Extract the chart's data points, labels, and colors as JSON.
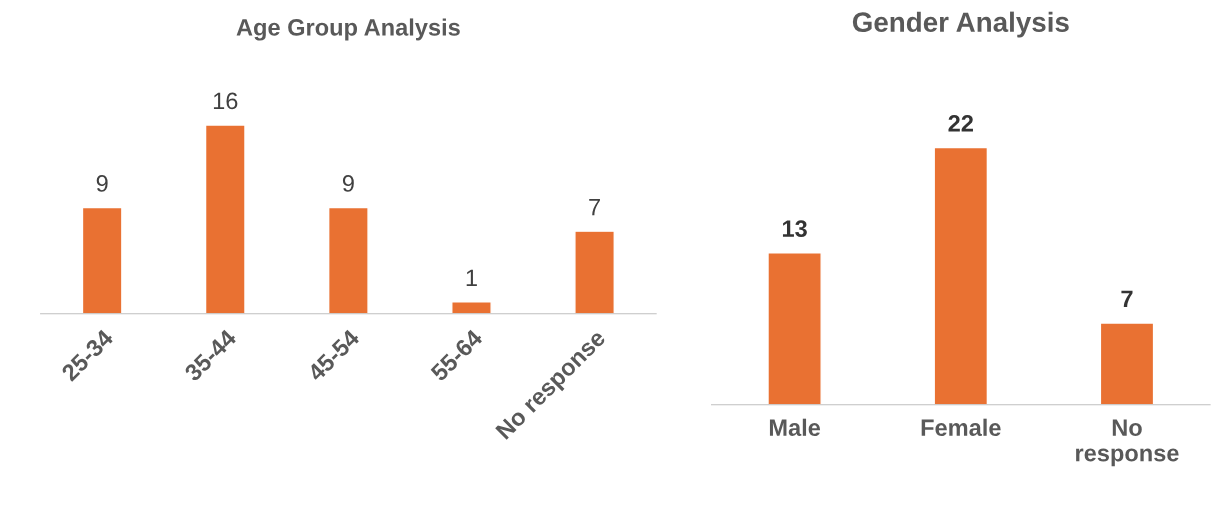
{
  "chart_data": [
    {
      "type": "bar",
      "title": "Age Group Analysis",
      "categories": [
        "25-34",
        "35-44",
        "45-54",
        "55-64",
        "No response"
      ],
      "values": [
        9,
        16,
        9,
        1,
        7
      ],
      "color": "#e97132",
      "data_labels": true,
      "grid": false,
      "legend": false
    },
    {
      "type": "bar",
      "title": "Gender Analysis",
      "categories": [
        "Male",
        "Female",
        "No\nresponse"
      ],
      "values": [
        13,
        22,
        7
      ],
      "color": "#e97132",
      "data_labels": true,
      "grid": false,
      "legend": false
    }
  ]
}
